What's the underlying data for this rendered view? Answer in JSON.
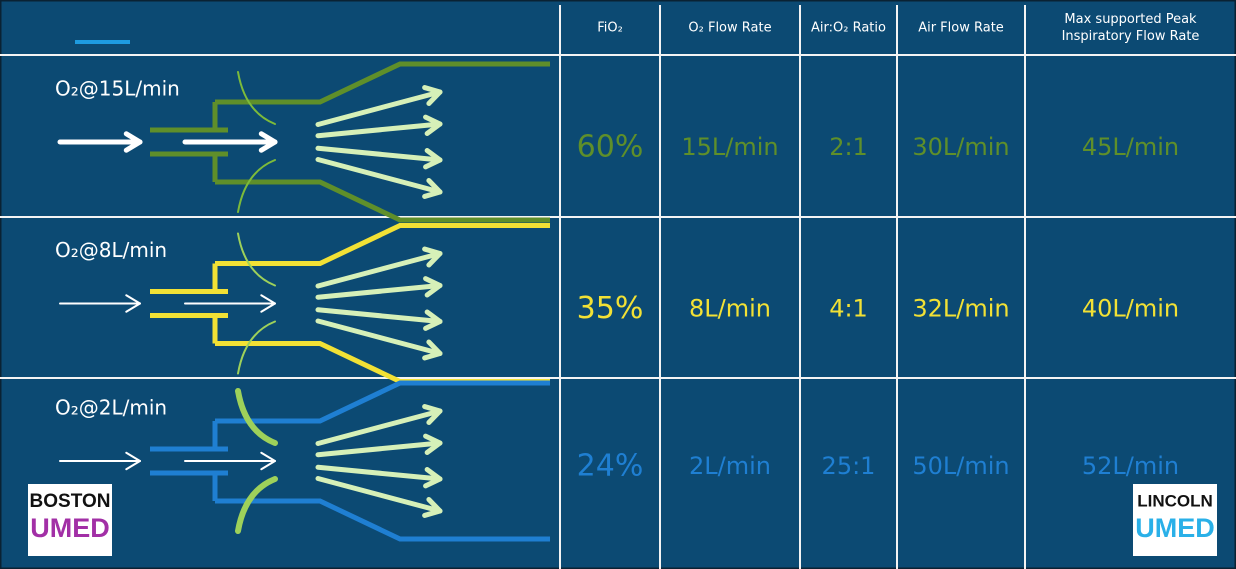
{
  "table": {
    "header": [
      "FiO₂",
      "O₂ Flow Rate",
      "Air:O₂ Ratio",
      "Air Flow Rate",
      "Max supported Peak Inspiratory Flow Rate"
    ],
    "rows": [
      {
        "label": "O₂@15L/min",
        "color": "#5f8f2a",
        "cells": [
          "60%",
          "15L/min",
          "2:1",
          "30L/min",
          "45L/min"
        ]
      },
      {
        "label": "O₂@8L/min",
        "color": "#f2e135",
        "cells": [
          "35%",
          "8L/min",
          "4:1",
          "32L/min",
          "40L/min"
        ]
      },
      {
        "label": "O₂@2L/min",
        "color": "#1f7fd2",
        "cells": [
          "24%",
          "2L/min",
          "25:1",
          "50L/min",
          "52L/min"
        ]
      }
    ]
  },
  "logos": [
    {
      "name": "BOSTON",
      "sub": "UMED"
    },
    {
      "name": "LINCOLN",
      "sub": "UMED"
    }
  ]
}
